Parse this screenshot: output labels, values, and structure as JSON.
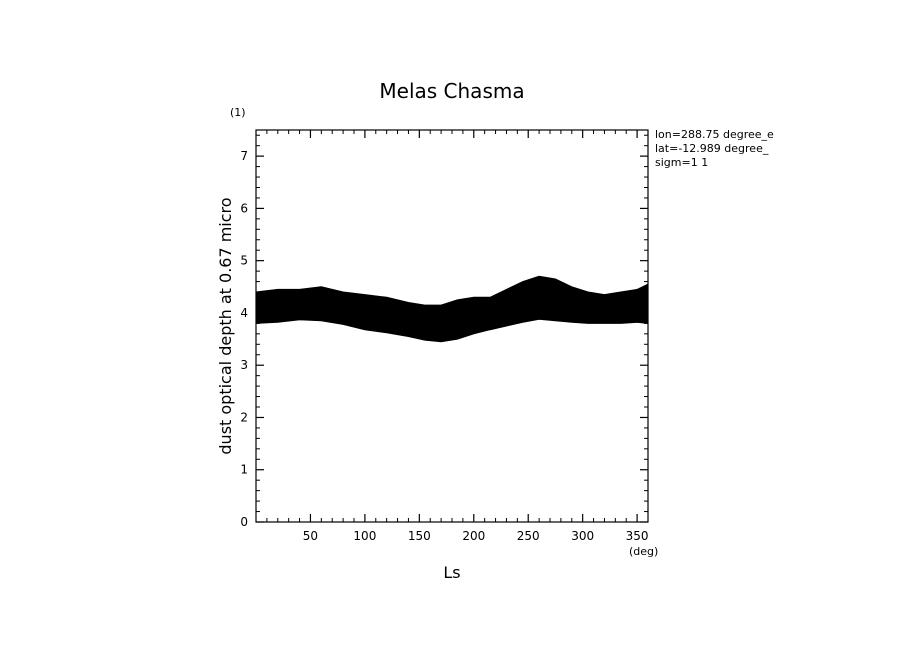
{
  "chart_data": {
    "type": "area",
    "title": "Melas Chasma",
    "panel_label": "(1)",
    "xlabel": "Ls",
    "xunit": "(deg)",
    "ylabel": "dust optical depth at 0.67 micro",
    "xlim": [
      0,
      360
    ],
    "ylim": [
      0,
      7.5
    ],
    "xticks": [
      50,
      100,
      150,
      200,
      250,
      300,
      350
    ],
    "yticks": [
      0,
      1,
      2,
      3,
      4,
      5,
      6,
      7
    ],
    "info_lines": [
      "lon=288.75 degree_e",
      "lat=-12.989 degree_",
      "sigm=1 1"
    ],
    "band_color": "#000000",
    "series": [
      {
        "x": [
          0,
          20,
          40,
          60,
          80,
          100,
          120,
          140,
          155,
          170,
          185,
          200,
          215,
          230,
          245,
          260,
          275,
          290,
          305,
          320,
          335,
          350,
          360
        ],
        "upper": [
          4.4,
          4.45,
          4.45,
          4.5,
          4.4,
          4.35,
          4.3,
          4.2,
          4.15,
          4.15,
          4.25,
          4.3,
          4.3,
          4.45,
          4.6,
          4.7,
          4.65,
          4.5,
          4.4,
          4.35,
          4.4,
          4.45,
          4.55
        ],
        "lower": [
          3.8,
          3.82,
          3.87,
          3.85,
          3.78,
          3.68,
          3.62,
          3.55,
          3.48,
          3.45,
          3.5,
          3.6,
          3.68,
          3.75,
          3.82,
          3.88,
          3.85,
          3.82,
          3.8,
          3.8,
          3.8,
          3.82,
          3.8
        ]
      }
    ]
  }
}
